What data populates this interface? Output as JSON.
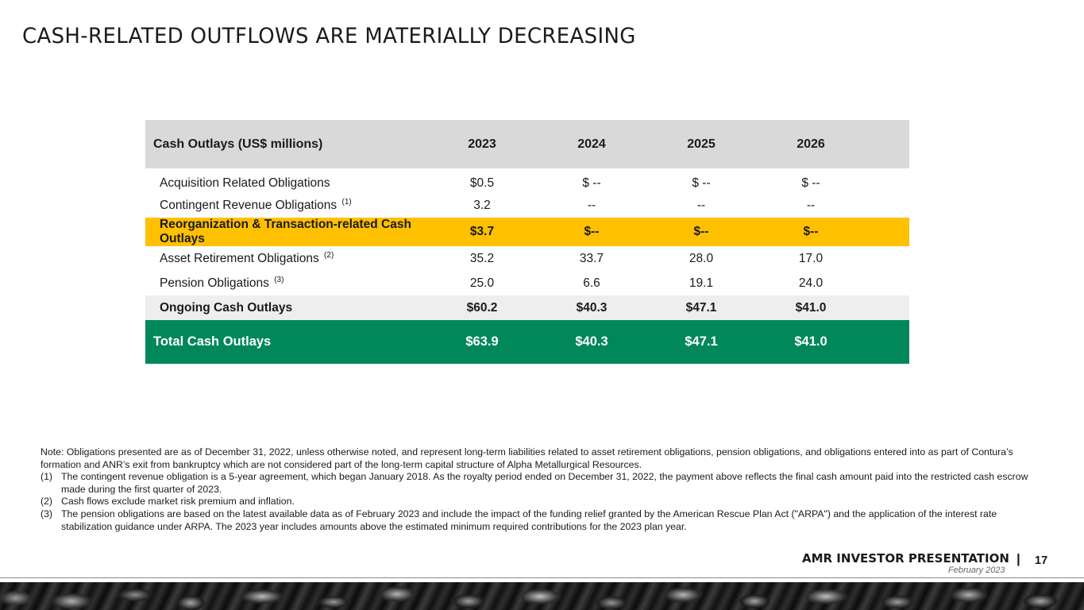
{
  "slide": {
    "title": "CASH-RELATED OUTFLOWS ARE MATERIALLY DECREASING",
    "page_number": "17"
  },
  "table": {
    "header": {
      "label": "Cash Outlays (US$ millions)",
      "years": [
        "2023",
        "2024",
        "2025",
        "2026"
      ]
    },
    "rows": [
      {
        "label": "Acquisition Related Obligations",
        "note": "",
        "values": [
          "$0.5",
          "$ --",
          "$ --",
          "$ --"
        ]
      },
      {
        "label": "Contingent Revenue Obligations",
        "note": "(1)",
        "values": [
          "3.2",
          "--",
          "--",
          "--"
        ]
      },
      {
        "label": "Reorganization & Transaction-related Cash Outlays",
        "note": "",
        "values": [
          "$3.7",
          "$--",
          "$--",
          "$--"
        ]
      },
      {
        "label": "Asset Retirement Obligations",
        "note": "(2)",
        "values": [
          "35.2",
          "33.7",
          "28.0",
          "17.0"
        ]
      },
      {
        "label": "Pension Obligations",
        "note": "(3)",
        "values": [
          "25.0",
          "6.6",
          "19.1",
          "24.0"
        ]
      },
      {
        "label": "Ongoing Cash Outlays",
        "note": "",
        "values": [
          "$60.2",
          "$40.3",
          "$47.1",
          "$41.0"
        ]
      },
      {
        "label": "Total Cash Outlays",
        "note": "",
        "values": [
          "$63.9",
          "$40.3",
          "$47.1",
          "$41.0"
        ]
      }
    ],
    "colors": {
      "header_bg": "#d9d9d9",
      "highlight_bg": "#ffc000",
      "subtotal_bg": "#eeeeee",
      "total_bg": "#00875a",
      "total_text": "#ffffff"
    }
  },
  "notes": {
    "intro": "Note: Obligations presented are as of December 31, 2022, unless otherwise noted, and represent long-term liabilities related to asset retirement obligations, pension obligations, and obligations entered into as part of Contura’s formation and ANR’s exit from bankruptcy which are not considered part of the long-term capital structure of Alpha Metallurgical Resources.",
    "footnotes": [
      {
        "num": "(1)",
        "text": "The contingent revenue obligation is a 5-year agreement, which began January 2018. As the royalty period ended on December 31, 2022, the payment above reflects the final cash amount paid into the restricted cash escrow made during the first quarter of 2023."
      },
      {
        "num": "(2)",
        "text": "Cash flows exclude market risk premium and inflation."
      },
      {
        "num": "(3)",
        "text": "The pension obligations are based on the latest available data as of February 2023 and include the impact of the funding relief granted by the American Rescue Plan Act (\"ARPA\") and the application of the interest rate stabilization guidance under ARPA. The 2023 year includes amounts above the estimated minimum required contributions for the 2023 plan year."
      }
    ]
  },
  "footer": {
    "presentation": "AMR INVESTOR PRESENTATION",
    "separator": "|",
    "date": "February 2023"
  }
}
